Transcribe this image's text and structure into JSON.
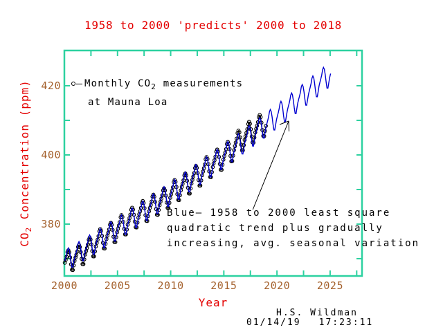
{
  "title": "1958 to 2000 'predicts' 2000 to 2018",
  "axes": {
    "x_label": "Year",
    "y_label_pre": "CO",
    "y_label_sub": "2",
    "y_label_post": " Concentration (ppm)"
  },
  "legend": {
    "marker": "open-circle-with-dash",
    "line1_pre": "Monthly CO",
    "line1_sub": "2",
    "line1_post": " measurements",
    "line2": "at Mauna Loa"
  },
  "annotation": {
    "line1": "Blue— 1958 to 2000 least square",
    "line2": "quadratic trend plus gradually",
    "line3": "increasing, avg. seasonal variation"
  },
  "credit": {
    "author": "H.S. Wildman",
    "date": "01/14/19",
    "time": "17:23:11"
  },
  "colors": {
    "title_red": "#e40000",
    "tick_label_brown": "#a5622e",
    "axis_frame_teal": "#2dd1a0",
    "measurement_black": "#000000",
    "prediction_blue": "#0000d0",
    "background": "#ffffff"
  },
  "chart_data": {
    "type": "line",
    "title": "1958 to 2000 'predicts' 2000 to 2018",
    "xlabel": "Year",
    "ylabel": "CO2 Concentration (ppm)",
    "xlim": [
      2000,
      2028
    ],
    "ylim": [
      365,
      430.2
    ],
    "xticks_major": [
      2000,
      2005,
      2010,
      2015,
      2020,
      2025
    ],
    "xticks_minor": [
      2002.5,
      2005,
      2007.5,
      2010,
      2012.5,
      2015,
      2017.5,
      2020,
      2022.5,
      2025,
      2027.5
    ],
    "yticks_major": [
      380,
      400,
      420
    ],
    "yticks_minor": [
      370,
      380,
      390,
      400,
      410,
      420
    ],
    "grid": false,
    "legend_position": "upper-left-inside",
    "series": [
      {
        "name": "Monthly CO2 measurements at Mauna Loa",
        "style": "open-circle markers joined by line",
        "color": "#000000",
        "x_start_year": 2000.0417,
        "sample_interval_years": 0.0833333,
        "n_points": 228,
        "annual_means_ppm_2000_to_2018": [
          369.6,
          371.1,
          373.3,
          375.8,
          377.5,
          379.8,
          381.9,
          383.8,
          385.6,
          387.4,
          389.9,
          391.7,
          393.9,
          396.5,
          398.6,
          400.8,
          404.2,
          406.6,
          408.5
        ],
        "monthly_seasonal_anomaly_ppm": [
          -0.1,
          0.6,
          1.4,
          2.6,
          3.0,
          2.3,
          0.7,
          -1.4,
          -3.1,
          -3.3,
          -2.1,
          -0.9
        ],
        "seasonal_amplitude_growth_per_year": 0.005
      },
      {
        "name": "1958 to 2000 least square quadratic trend plus gradually increasing, avg. seasonal variation",
        "style": "solid line",
        "color": "#0000d0",
        "x_start_year": 2000.0417,
        "x_end_year": 2025.04,
        "sample_interval_years": 0.0833333,
        "n_points": 301,
        "quadratic_trend": {
          "value_at_2000_ppm": 369.4,
          "slope_ppm_per_year": 1.82,
          "accel_ppm_per_year2": 0.0138
        },
        "monthly_seasonal_anomaly_ppm": [
          -0.1,
          0.6,
          1.4,
          2.6,
          3.0,
          2.3,
          0.7,
          -1.4,
          -3.1,
          -3.3,
          -2.1,
          -0.9
        ],
        "seasonal_amplitude_growth_per_year": 0.005
      }
    ],
    "pointer_arrow": {
      "from_year_ppm": [
        2017.73,
        384.2
      ],
      "to_year_ppm": [
        2021.1,
        409.8
      ]
    }
  }
}
